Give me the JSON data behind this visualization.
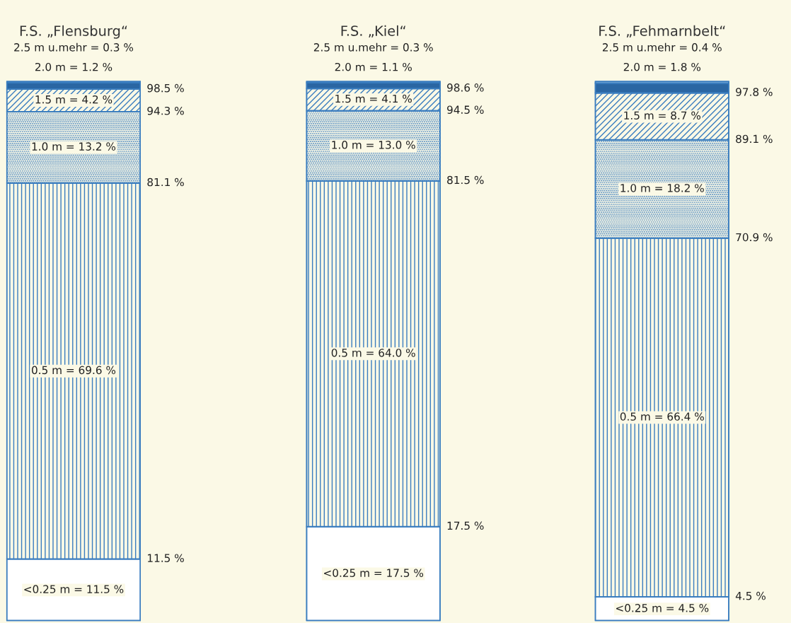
{
  "chart_data": [
    {
      "type": "bar",
      "title": "F.S. „Flensburg“",
      "categories": [
        null
      ],
      "stacked": true,
      "ylim": [
        0,
        100
      ],
      "tick_labels": false,
      "series": [
        {
          "color": "#ffffff",
          "values": [
            11.5
          ],
          "value_labels": [
            "<0.25 m = 11.5 %"
          ]
        },
        {
          "color": "#3a7dbf",
          "values": [
            69.6
          ],
          "value_labels": [
            "0.5 m = 69.6 %"
          ]
        },
        {
          "color": "#3a7dbf",
          "values": [
            13.2
          ],
          "value_labels": [
            "1.0 m = 13.2 %"
          ]
        },
        {
          "color": "#3a7dbf",
          "values": [
            4.2
          ],
          "value_labels": [
            "1.5 m = 4.2 %"
          ]
        },
        {
          "color": "#2a66a3",
          "values": [
            1.2
          ],
          "value_labels": [
            "2.0 m = 1.2 %"
          ]
        },
        {
          "color": "#bcdcf0",
          "values": [
            0.3
          ],
          "value_labels": [
            "2.5 m u.mehr = 0.3 %"
          ]
        }
      ],
      "annotations": [
        "11.5 %",
        "81.1 %",
        "94.3 %",
        "98.5 %"
      ]
    },
    {
      "type": "bar",
      "title": "F.S. „Kiel“",
      "categories": [
        null
      ],
      "stacked": true,
      "ylim": [
        0,
        100
      ],
      "tick_labels": false,
      "series": [
        {
          "color": "#ffffff",
          "values": [
            17.5
          ],
          "value_labels": [
            "<0.25 m = 17.5 %"
          ]
        },
        {
          "color": "#3a7dbf",
          "values": [
            64.0
          ],
          "value_labels": [
            "0.5 m = 64.0 %"
          ]
        },
        {
          "color": "#3a7dbf",
          "values": [
            13.0
          ],
          "value_labels": [
            "1.0 m = 13.0 %"
          ]
        },
        {
          "color": "#3a7dbf",
          "values": [
            4.1
          ],
          "value_labels": [
            "1.5 m = 4.1 %"
          ]
        },
        {
          "color": "#2a66a3",
          "values": [
            1.1
          ],
          "value_labels": [
            "2.0 m = 1.1 %"
          ]
        },
        {
          "color": "#bcdcf0",
          "values": [
            0.3
          ],
          "value_labels": [
            "2.5 m u.mehr = 0.3 %"
          ]
        }
      ],
      "annotations": [
        "17.5 %",
        "81.5 %",
        "94.5 %",
        "98.6 %"
      ]
    },
    {
      "type": "bar",
      "title": "F.S. „Fehmarnbelt“",
      "categories": [
        null
      ],
      "stacked": true,
      "ylim": [
        0,
        100
      ],
      "tick_labels": false,
      "series": [
        {
          "color": "#ffffff",
          "values": [
            4.5
          ],
          "value_labels": [
            "<0.25 m = 4.5 %"
          ]
        },
        {
          "color": "#3a7dbf",
          "values": [
            66.4
          ],
          "value_labels": [
            "0.5 m = 66.4 %"
          ]
        },
        {
          "color": "#3a7dbf",
          "values": [
            18.2
          ],
          "value_labels": [
            "1.0 m = 18.2 %"
          ]
        },
        {
          "color": "#3a7dbf",
          "values": [
            8.7
          ],
          "value_labels": [
            "1.5 m = 8.7 %"
          ]
        },
        {
          "color": "#2a66a3",
          "values": [
            1.8
          ],
          "value_labels": [
            "2.0 m = 1.8 %"
          ]
        },
        {
          "color": "#bcdcf0",
          "values": [
            0.4
          ],
          "value_labels": [
            "2.5 m u.mehr = 0.4 %"
          ]
        }
      ],
      "annotations": [
        "4.5 %",
        "70.9 %",
        "89.1 %",
        "97.8 %"
      ]
    }
  ]
}
